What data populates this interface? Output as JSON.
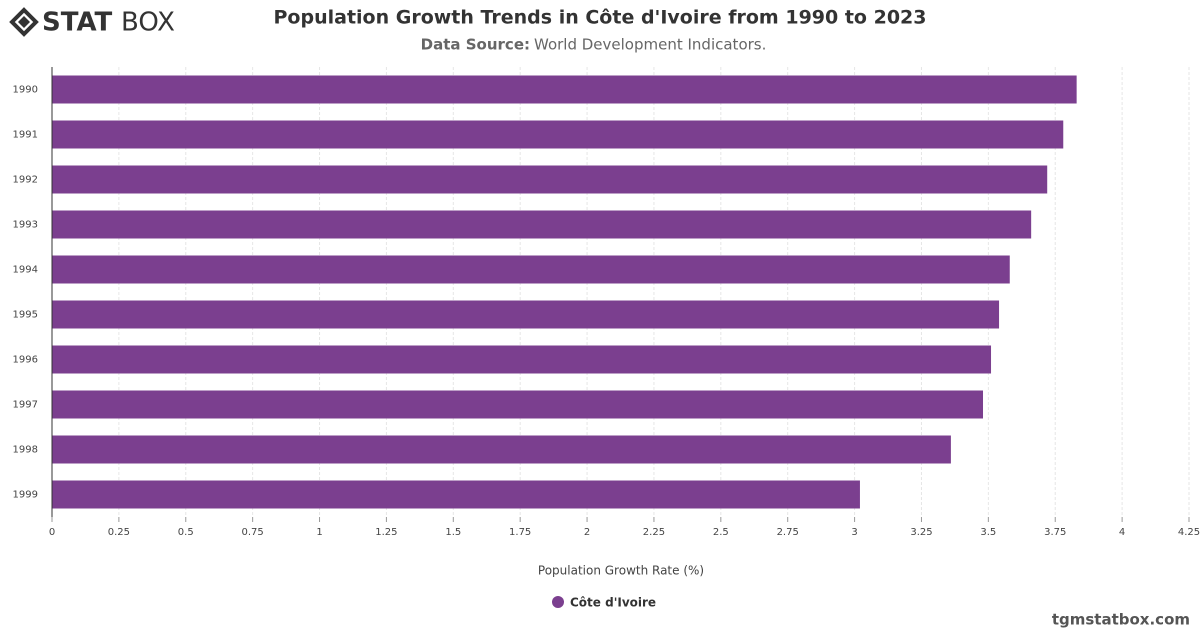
{
  "logo": {
    "bold": "STAT",
    "light": "BOX"
  },
  "footer": "tgmstatbox.com",
  "chart_data": {
    "type": "barh",
    "title": "Population Growth Trends in Côte d'Ivoire from 1990 to 2023",
    "source_label": "Data Source:",
    "source": "World Development Indicators.",
    "x_label": "Population Growth Rate (%)",
    "categories": [
      "1990",
      "1991",
      "1992",
      "1993",
      "1994",
      "1995",
      "1996",
      "1997",
      "1998",
      "1999"
    ],
    "series": [
      {
        "name": "Côte d'Ivoire",
        "color": "#7b3f8f",
        "values": [
          3.83,
          3.78,
          3.72,
          3.66,
          3.58,
          3.54,
          3.51,
          3.48,
          3.36,
          3.02
        ]
      }
    ],
    "xlim": [
      0,
      4.25
    ],
    "xticks": [
      0,
      0.25,
      0.5,
      0.75,
      1,
      1.25,
      1.5,
      1.75,
      2,
      2.25,
      2.5,
      2.75,
      3,
      3.25,
      3.5,
      3.75,
      4,
      4.25
    ],
    "grid": true
  }
}
